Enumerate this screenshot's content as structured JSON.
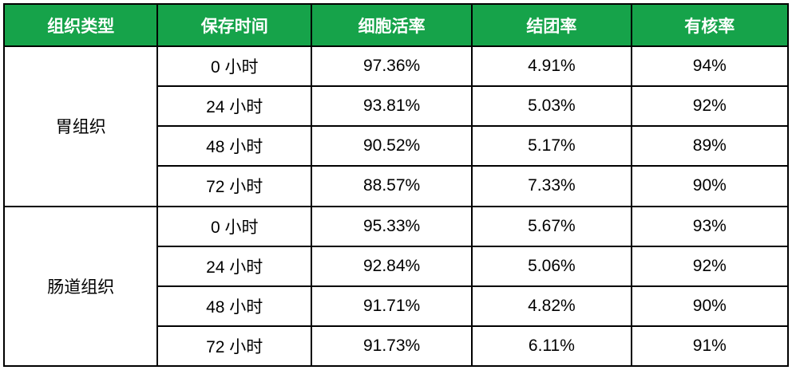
{
  "colors": {
    "header_bg": "#16A34A",
    "header_text": "#FFFFFF",
    "border": "#000000",
    "body_text": "#000000",
    "page_bg": "#FFFFFF"
  },
  "table": {
    "columns": [
      "组织类型",
      "保存时间",
      "细胞活率",
      "结团率",
      "有核率"
    ],
    "groups": [
      {
        "tissue": "胃组织",
        "rows": [
          {
            "time": "0 小时",
            "viability": "97.36%",
            "clumping": "4.91%",
            "nucleated": "94%"
          },
          {
            "time": "24 小时",
            "viability": "93.81%",
            "clumping": "5.03%",
            "nucleated": "92%"
          },
          {
            "time": "48 小时",
            "viability": "90.52%",
            "clumping": "5.17%",
            "nucleated": "89%"
          },
          {
            "time": "72 小时",
            "viability": "88.57%",
            "clumping": "7.33%",
            "nucleated": "90%"
          }
        ]
      },
      {
        "tissue": "肠道组织",
        "rows": [
          {
            "time": "0 小时",
            "viability": "95.33%",
            "clumping": "5.67%",
            "nucleated": "93%"
          },
          {
            "time": "24 小时",
            "viability": "92.84%",
            "clumping": "5.06%",
            "nucleated": "92%"
          },
          {
            "time": "48 小时",
            "viability": "91.71%",
            "clumping": "4.82%",
            "nucleated": "90%"
          },
          {
            "time": "72 小时",
            "viability": "91.73%",
            "clumping": "6.11%",
            "nucleated": "91%"
          }
        ]
      }
    ]
  },
  "chart_data": {
    "type": "table",
    "title": "",
    "columns": [
      "组织类型",
      "保存时间",
      "细胞活率",
      "结团率",
      "有核率"
    ],
    "rows": [
      [
        "胃组织",
        "0 小时",
        "97.36%",
        "4.91%",
        "94%"
      ],
      [
        "胃组织",
        "24 小时",
        "93.81%",
        "5.03%",
        "92%"
      ],
      [
        "胃组织",
        "48 小时",
        "90.52%",
        "5.17%",
        "89%"
      ],
      [
        "胃组织",
        "72 小时",
        "88.57%",
        "7.33%",
        "90%"
      ],
      [
        "肠道组织",
        "0 小时",
        "95.33%",
        "5.67%",
        "93%"
      ],
      [
        "肠道组织",
        "24 小时",
        "92.84%",
        "5.06%",
        "92%"
      ],
      [
        "肠道组织",
        "48 小时",
        "91.71%",
        "4.82%",
        "90%"
      ],
      [
        "肠道组织",
        "72 小时",
        "91.73%",
        "6.11%",
        "91%"
      ]
    ]
  }
}
